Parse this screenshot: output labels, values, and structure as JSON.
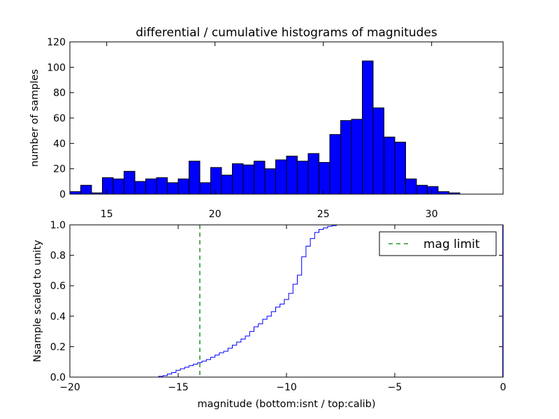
{
  "chart_data": [
    {
      "type": "bar",
      "title": "differential / cumulative histograms of magnitudes",
      "xlabel": "",
      "ylabel": "number of samples",
      "xlim": [
        13.3,
        33.3
      ],
      "ylim": [
        0,
        120
      ],
      "xticks": [
        15,
        20,
        25,
        30
      ],
      "yticks": [
        0,
        20,
        40,
        60,
        80,
        100,
        120
      ],
      "bar_color": "#0000ff",
      "bin_width": 0.5,
      "bin_starts": [
        13.3,
        13.8,
        14.3,
        14.8,
        15.3,
        15.8,
        16.3,
        16.8,
        17.3,
        17.8,
        18.3,
        18.8,
        19.3,
        19.8,
        20.3,
        20.8,
        21.3,
        21.8,
        22.3,
        22.8,
        23.3,
        23.8,
        24.3,
        24.8,
        25.3,
        25.8,
        26.3,
        26.8,
        27.3,
        27.8,
        28.3,
        28.8,
        29.3,
        29.8,
        30.3,
        30.8,
        31.3,
        31.8,
        32.3,
        32.8
      ],
      "values": [
        2,
        7,
        1,
        13,
        12,
        18,
        10,
        12,
        13,
        9,
        12,
        26,
        9,
        21,
        15,
        24,
        23,
        26,
        20,
        27,
        30,
        26,
        32,
        25,
        47,
        58,
        59,
        105,
        68,
        45,
        41,
        12,
        7,
        6,
        2,
        1,
        0,
        0,
        0,
        0
      ]
    },
    {
      "type": "line",
      "title": "",
      "xlabel": "magnitude (bottom:isnt / top:calib)",
      "ylabel": "Nsample scaled to unity",
      "xlim": [
        -20,
        0
      ],
      "ylim": [
        0,
        1.0
      ],
      "xticks": [
        -20,
        -15,
        -10,
        -5,
        0
      ],
      "yticks": [
        0.0,
        0.2,
        0.4,
        0.6,
        0.8,
        1.0
      ],
      "line_color": "#0000ff",
      "step": true,
      "x": [
        -20,
        -15.9,
        -15.7,
        -15.5,
        -15.3,
        -15.1,
        -14.9,
        -14.7,
        -14.5,
        -14.3,
        -14.1,
        -13.9,
        -13.7,
        -13.5,
        -13.3,
        -13.1,
        -12.9,
        -12.7,
        -12.5,
        -12.3,
        -12.1,
        -11.9,
        -11.7,
        -11.5,
        -11.3,
        -11.1,
        -10.9,
        -10.7,
        -10.5,
        -10.3,
        -10.1,
        -9.9,
        -9.7,
        -9.5,
        -9.3,
        -9.1,
        -8.9,
        -8.7,
        -8.5,
        -8.3,
        -8.1,
        -7.9,
        -7.7,
        -7.5,
        -7.3,
        -0.02
      ],
      "values": [
        0.0,
        0.005,
        0.01,
        0.02,
        0.03,
        0.045,
        0.055,
        0.065,
        0.075,
        0.085,
        0.095,
        0.105,
        0.115,
        0.13,
        0.145,
        0.16,
        0.17,
        0.19,
        0.21,
        0.23,
        0.25,
        0.27,
        0.3,
        0.33,
        0.35,
        0.38,
        0.4,
        0.43,
        0.46,
        0.48,
        0.51,
        0.55,
        0.61,
        0.67,
        0.79,
        0.86,
        0.91,
        0.95,
        0.97,
        0.98,
        0.99,
        0.995,
        1.0,
        1.0,
        1.0,
        1.0
      ],
      "vline": {
        "x": -14,
        "color": "#008000",
        "label": "mag limit"
      },
      "legend": {
        "placement": "top-right",
        "entries": [
          "mag limit"
        ]
      }
    }
  ]
}
